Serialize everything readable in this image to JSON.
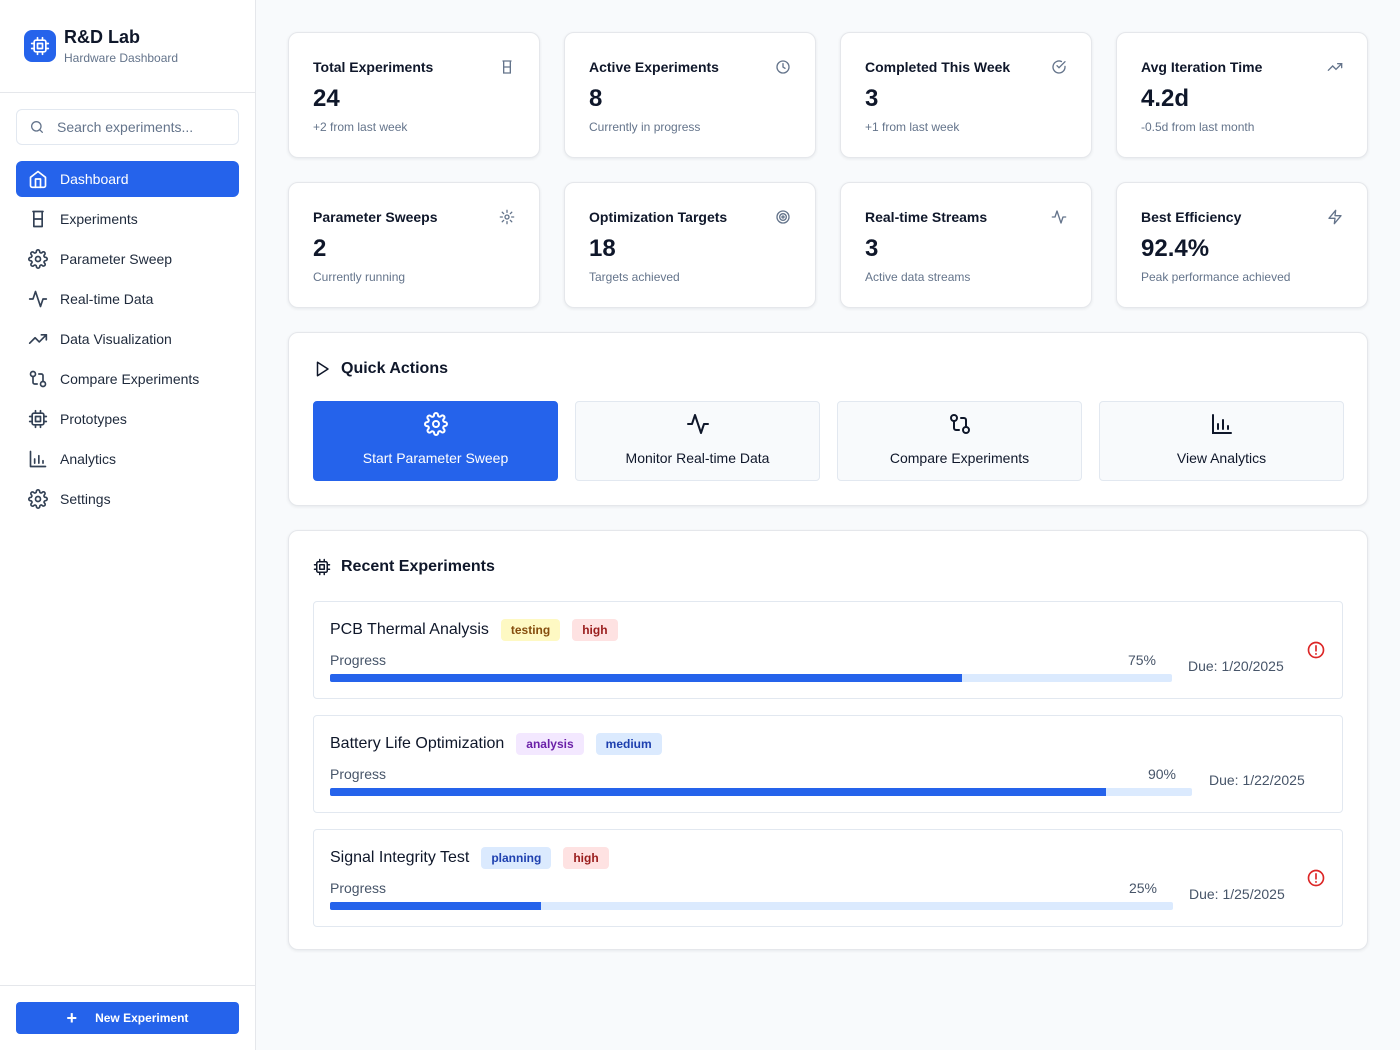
{
  "brand": {
    "title": "R&D Lab",
    "subtitle": "Hardware Dashboard"
  },
  "search": {
    "placeholder": "Search experiments..."
  },
  "nav": [
    {
      "label": "Dashboard",
      "icon": "home-icon",
      "active": true
    },
    {
      "label": "Experiments",
      "icon": "flask-icon"
    },
    {
      "label": "Parameter Sweep",
      "icon": "gear-icon"
    },
    {
      "label": "Real-time Data",
      "icon": "activity-icon"
    },
    {
      "label": "Data Visualization",
      "icon": "trending-up-icon"
    },
    {
      "label": "Compare Experiments",
      "icon": "git-compare-icon"
    },
    {
      "label": "Prototypes",
      "icon": "cpu-icon"
    },
    {
      "label": "Analytics",
      "icon": "bar-chart-icon"
    },
    {
      "label": "Settings",
      "icon": "gear-icon"
    }
  ],
  "footer": {
    "new_experiment": "New Experiment"
  },
  "stats": [
    {
      "title": "Total Experiments",
      "value": "24",
      "sub": "+2 from last week",
      "icon": "flask-icon"
    },
    {
      "title": "Active Experiments",
      "value": "8",
      "sub": "Currently in progress",
      "icon": "clock-icon"
    },
    {
      "title": "Completed This Week",
      "value": "3",
      "sub": "+1 from last week",
      "icon": "check-circle-icon"
    },
    {
      "title": "Avg Iteration Time",
      "value": "4.2d",
      "sub": "-0.5d from last month",
      "icon": "trending-up-icon"
    },
    {
      "title": "Parameter Sweeps",
      "value": "2",
      "sub": "Currently running",
      "icon": "gear-icon"
    },
    {
      "title": "Optimization Targets",
      "value": "18",
      "sub": "Targets achieved",
      "icon": "target-icon"
    },
    {
      "title": "Real-time Streams",
      "value": "3",
      "sub": "Active data streams",
      "icon": "activity-icon"
    },
    {
      "title": "Best Efficiency",
      "value": "92.4%",
      "sub": "Peak performance achieved",
      "icon": "zap-icon"
    }
  ],
  "quick_actions": {
    "title": "Quick Actions",
    "items": [
      {
        "label": "Start Parameter Sweep",
        "icon": "gear-icon",
        "primary": true
      },
      {
        "label": "Monitor Real-time Data",
        "icon": "activity-icon"
      },
      {
        "label": "Compare Experiments",
        "icon": "git-compare-icon"
      },
      {
        "label": "View Analytics",
        "icon": "bar-chart-icon"
      }
    ]
  },
  "recent": {
    "title": "Recent Experiments",
    "progress_label": "Progress",
    "items": [
      {
        "name": "PCB Thermal Analysis",
        "status": "testing",
        "priority": "high",
        "progress": 75,
        "progress_text": "75%",
        "due": "Due: 1/20/2025",
        "alert": true
      },
      {
        "name": "Battery Life Optimization",
        "status": "analysis",
        "priority": "medium",
        "progress": 90,
        "progress_text": "90%",
        "due": "Due: 1/22/2025",
        "alert": false
      },
      {
        "name": "Signal Integrity Test",
        "status": "planning",
        "priority": "high",
        "progress": 25,
        "progress_text": "25%",
        "due": "Due: 1/25/2025",
        "alert": true
      }
    ]
  },
  "colors": {
    "accent": "#2563eb",
    "alert": "#dc2626",
    "bar_track": "#dbeafe"
  }
}
